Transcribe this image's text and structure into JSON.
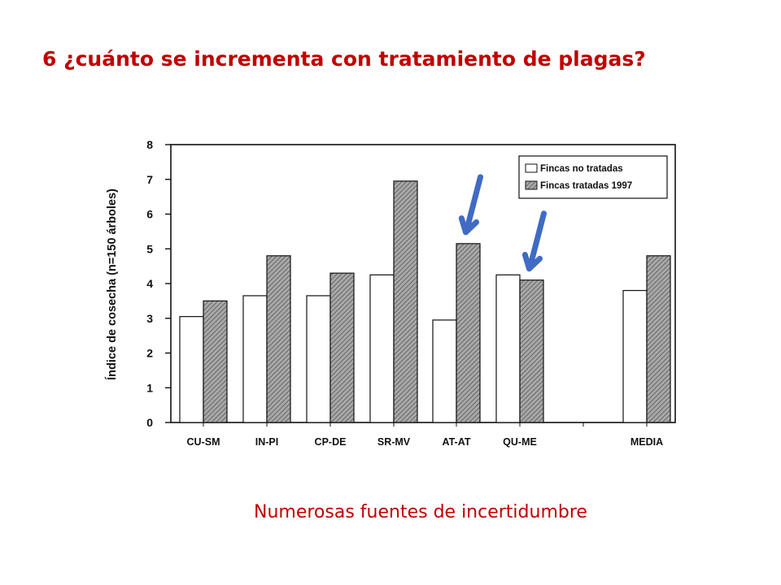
{
  "slide": {
    "title": "6 ¿cuánto se incrementa con tratamiento de plagas?",
    "caption": "Numerosas fuentes de incertidumbre"
  },
  "colors": {
    "title": "#c00000",
    "caption": "#c00000",
    "arrow": "#3f6bc4",
    "bar_untreated_fill": "#ffffff",
    "bar_treated_fill": "#9a9a9a",
    "axis": "#111111"
  },
  "icons": {
    "annotation": "down-arrow-icon"
  },
  "chart_data": {
    "type": "bar",
    "title": "",
    "xlabel": "",
    "ylabel": "Índice de cosecha (n=150 árboles)",
    "ylim": [
      0,
      8
    ],
    "yticks": [
      0,
      1,
      2,
      3,
      4,
      5,
      6,
      7,
      8
    ],
    "grid": false,
    "legend_position": "top-right",
    "categories": [
      "CU-SM",
      "IN-PI",
      "CP-DE",
      "SR-MV",
      "AT-AT",
      "QU-ME",
      "",
      "MEDIA"
    ],
    "series": [
      {
        "name": "Fincas no tratadas",
        "pattern": "plain",
        "values": [
          3.05,
          3.65,
          3.65,
          4.25,
          2.95,
          4.25,
          0,
          3.8
        ]
      },
      {
        "name": "Fincas tratadas 1997",
        "pattern": "hatched",
        "values": [
          3.5,
          4.8,
          4.3,
          6.95,
          5.15,
          4.1,
          0,
          4.8
        ]
      }
    ],
    "annotations": [
      {
        "type": "arrow",
        "category": "AT-AT",
        "series": "Fincas tratadas 1997"
      },
      {
        "type": "arrow",
        "category": "QU-ME",
        "series": "Fincas tratadas 1997"
      }
    ]
  }
}
